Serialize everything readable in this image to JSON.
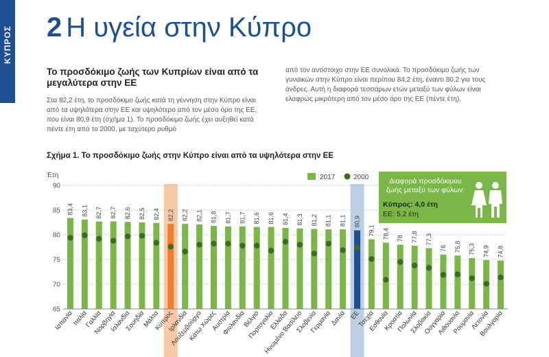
{
  "side_tab": "ΚΥΠΡΟΣ",
  "heading": {
    "number": "2",
    "text": "Η υγεία στην Κύπρο"
  },
  "subheading": "Το προσδόκιμο ζωής των Κυπρίων είναι από τα μεγαλύτερα στην ΕΕ",
  "body_col1": "Στα 82,2 έτη, το προσδόκιμο ζωής κατά τη γέννηση στην Κύπρο είναι από τα υψηλότερα στην ΕΕ και υψηλότερο από τον μέσο όρο της ΕΕ, που είναι 80,9 έτη (σχήμα 1). Το προσδόκιμο ζωής έχει αυξηθεί κατά πέντε έτη από το 2000, με ταχύτερο ρυθμό",
  "body_col2": "από τον αντίστοιχο στην ΕΕ συνολικά. Το προσδόκιμο ζωής των γυναικών στην Κύπρο είναι περίπου 84,2 έτη, έναντι 80,2 για τους άνδρες. Αυτή η διαφορά τεσσάρων ετών μεταξύ των φύλων είναι ελαφρώς μικρότερη από τον μέσο όρο της ΕΕ (πέντε έτη).",
  "figure_title": "Σχήμα 1. Το προσδόκιμο ζωής στην Κύπρο είναι από τα υψηλότερα στην ΕΕ",
  "info_box": {
    "title": "Διαφορά προσδόκιμου ζωής μεταξύ των φύλων:",
    "cyprus": "Κύπρος: 4,0 έτη",
    "eu": "ΕΕ: 5,2 έτη",
    "icon": "female-male-icon"
  },
  "colors": {
    "bar": "#7ab648",
    "bar_cyprus": "#f07d2e",
    "bar_eu": "#1d4f91",
    "dot_2000": "#3d6b22",
    "highlight_cyprus": "#f8c9a4",
    "highlight_eu": "#bccfe6"
  },
  "chart_data": {
    "type": "bar",
    "ylabel": "Έτη",
    "ylim": [
      65,
      90
    ],
    "yticks": [
      65,
      70,
      75,
      80,
      85,
      90
    ],
    "legend_position": "top-right",
    "categories": [
      "Ισπανία",
      "Ιταλία",
      "Γαλλία",
      "Νορβηγία",
      "Ισλανδία",
      "Σουηδία",
      "Μάλτα",
      "Κύπρος",
      "Ιρλανδία",
      "Λουξεμβούργο",
      "Κάτω Χώρες",
      "Αυστρία",
      "Φινλανδία",
      "Βέλγιο",
      "Πορτογαλία",
      "Ελλάδα",
      "Ηνωμένο Βασίλειο",
      "Σλοβενία",
      "Γερμανία",
      "Δανία",
      "ΕΕ",
      "Τσεχία",
      "Εσθονία",
      "Κροατία",
      "Πολωνία",
      "Σλοβακία",
      "Ουγγαρία",
      "Λιθουανία",
      "Ρουμανία",
      "Λετονία",
      "Βουλγαρία"
    ],
    "value_labels": [
      "83,4",
      "83,1",
      "82,7",
      "82,7",
      "82,6",
      "82,5",
      "82,4",
      "82,2",
      "82,2",
      "82,1",
      "81,8",
      "81,7",
      "81,7",
      "81,6",
      "81,6",
      "81,4",
      "81,3",
      "81,2",
      "81,1",
      "81,1",
      "80,9",
      "79,1",
      "78,4",
      "78",
      "77,8",
      "77,3",
      "76",
      "75,8",
      "75,3",
      "74,9",
      "74,8"
    ],
    "highlight": [
      "Κύπρος",
      "ΕΕ"
    ],
    "series": [
      {
        "name": "2017",
        "type": "bar",
        "values": [
          83.4,
          83.1,
          82.7,
          82.7,
          82.6,
          82.5,
          82.4,
          82.2,
          82.2,
          82.1,
          81.8,
          81.7,
          81.7,
          81.6,
          81.6,
          81.4,
          81.3,
          81.2,
          81.1,
          81.1,
          80.9,
          79.1,
          78.4,
          78.0,
          77.8,
          77.3,
          76.0,
          75.8,
          75.3,
          74.9,
          74.8
        ]
      },
      {
        "name": "2000",
        "type": "dot",
        "values": [
          79.4,
          79.9,
          79.2,
          78.8,
          79.7,
          79.8,
          78.4,
          77.6,
          76.6,
          78.0,
          78.2,
          78.2,
          77.8,
          77.8,
          76.8,
          78.6,
          78.0,
          76.2,
          78.2,
          76.9,
          77.4,
          75.1,
          70.9,
          74.5,
          73.8,
          73.3,
          71.9,
          72.0,
          71.2,
          70.1,
          71.4
        ]
      }
    ]
  }
}
